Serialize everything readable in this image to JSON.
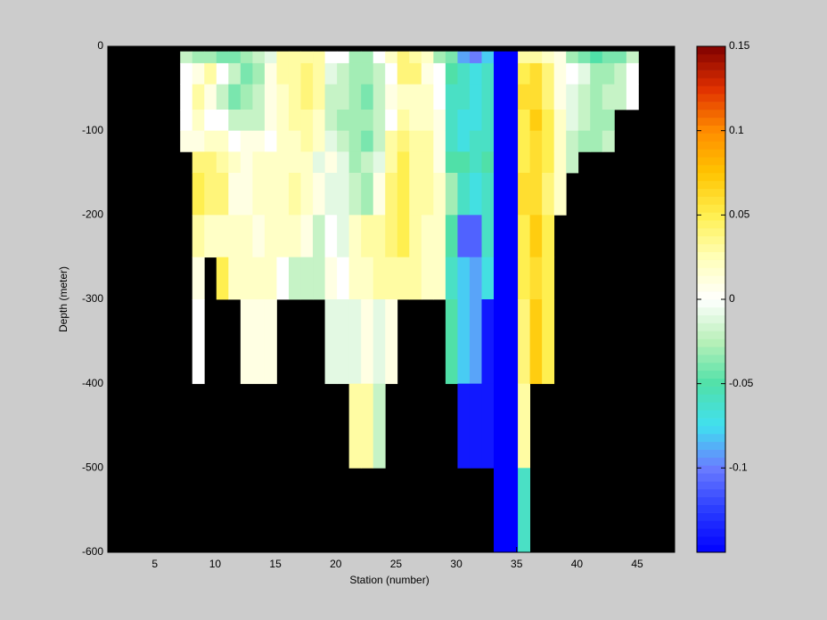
{
  "chart_data": {
    "type": "heatmap",
    "xlabel": "Station (number)",
    "ylabel": "Depth (meter)",
    "xlim": [
      1.1,
      48.1
    ],
    "ylim": [
      -600,
      0
    ],
    "xticks": [
      5,
      10,
      15,
      20,
      25,
      30,
      35,
      40,
      45
    ],
    "yticks": [
      0,
      -100,
      -200,
      -300,
      -400,
      -500,
      -600
    ],
    "background": "#000000",
    "x": [
      7.6,
      8.6,
      9.6,
      10.6,
      11.6,
      12.6,
      13.6,
      14.6,
      15.6,
      16.6,
      17.6,
      18.6,
      19.6,
      20.6,
      21.6,
      22.6,
      23.6,
      24.6,
      25.6,
      26.6,
      27.6,
      28.6,
      29.6,
      30.6,
      31.6,
      32.6,
      33.6,
      34.6,
      35.6,
      36.6,
      37.6,
      38.6,
      39.6,
      40.6,
      41.6,
      42.6,
      43.6,
      44.6
    ],
    "ybins": [
      -6,
      -20,
      -45,
      -75,
      -100,
      -125,
      -150,
      -200,
      -250,
      -300,
      -400,
      -500,
      -600
    ],
    "z": [
      [
        -0.02,
        0.0,
        0.0,
        0.0,
        0.01,
        null,
        null,
        null,
        null,
        null,
        null,
        null
      ],
      [
        -0.03,
        0.01,
        0.03,
        0.02,
        0.01,
        0.04,
        0.05,
        0.03,
        0.01,
        0.0,
        null,
        null
      ],
      [
        -0.03,
        0.03,
        0.01,
        0.0,
        0.02,
        0.04,
        0.04,
        0.02,
        null,
        null,
        null,
        null
      ],
      [
        -0.04,
        0.0,
        -0.02,
        0.0,
        0.02,
        0.03,
        0.04,
        0.02,
        0.05,
        null,
        null,
        null
      ],
      [
        -0.04,
        -0.02,
        -0.04,
        -0.02,
        0.0,
        0.02,
        0.01,
        0.02,
        0.02,
        null,
        null,
        null
      ],
      [
        -0.03,
        -0.04,
        -0.03,
        -0.02,
        0.01,
        0.01,
        0.01,
        0.02,
        0.02,
        0.01,
        null,
        null
      ],
      [
        -0.02,
        -0.03,
        -0.02,
        -0.02,
        0.01,
        0.02,
        0.02,
        0.01,
        0.02,
        0.01,
        null,
        null
      ],
      [
        -0.01,
        0.01,
        0.01,
        0.01,
        0.0,
        0.02,
        0.02,
        0.02,
        0.02,
        0.01,
        null,
        null
      ],
      [
        0.03,
        0.03,
        0.02,
        0.02,
        0.02,
        0.02,
        0.02,
        0.02,
        0.0,
        null,
        null,
        null
      ],
      [
        0.03,
        0.03,
        0.03,
        0.03,
        0.02,
        0.02,
        0.03,
        0.02,
        -0.02,
        null,
        null,
        null
      ],
      [
        0.03,
        0.04,
        0.04,
        0.03,
        0.03,
        0.02,
        0.02,
        0.01,
        -0.02,
        null,
        null,
        null
      ],
      [
        0.03,
        0.03,
        0.03,
        0.02,
        0.02,
        -0.01,
        0.01,
        -0.02,
        -0.02,
        null,
        null,
        null
      ],
      [
        0.0,
        -0.01,
        -0.02,
        -0.02,
        -0.01,
        0.01,
        -0.01,
        0.0,
        0.01,
        -0.01,
        null,
        null
      ],
      [
        0.0,
        -0.02,
        -0.02,
        -0.03,
        -0.02,
        -0.01,
        -0.01,
        -0.01,
        0.0,
        -0.01,
        null,
        null
      ],
      [
        -0.03,
        -0.03,
        -0.03,
        -0.03,
        -0.03,
        -0.03,
        -0.02,
        0.02,
        0.02,
        -0.01,
        0.03,
        null
      ],
      [
        -0.03,
        -0.03,
        -0.04,
        -0.03,
        -0.04,
        -0.02,
        -0.03,
        0.03,
        0.02,
        0.01,
        0.03,
        null
      ],
      [
        0.0,
        -0.02,
        -0.02,
        -0.02,
        -0.02,
        -0.01,
        0.01,
        0.03,
        0.03,
        -0.01,
        -0.02,
        null
      ],
      [
        0.02,
        0.0,
        0.01,
        0.0,
        0.03,
        0.03,
        0.04,
        0.04,
        0.03,
        0.01,
        null,
        null
      ],
      [
        0.04,
        0.04,
        0.02,
        0.03,
        0.04,
        0.05,
        0.05,
        0.05,
        0.03,
        null,
        null,
        null
      ],
      [
        0.03,
        0.04,
        0.02,
        0.02,
        0.03,
        0.03,
        0.03,
        0.03,
        0.03,
        null,
        null,
        null
      ],
      [
        0.02,
        0.01,
        0.02,
        0.02,
        0.03,
        0.03,
        0.03,
        0.02,
        0.02,
        null,
        null,
        null
      ],
      [
        -0.03,
        0.0,
        0.0,
        0.01,
        0.01,
        0.01,
        0.02,
        0.02,
        0.02,
        null,
        null,
        null
      ],
      [
        -0.04,
        -0.05,
        -0.06,
        -0.06,
        -0.06,
        -0.05,
        -0.03,
        -0.05,
        -0.06,
        -0.05,
        null,
        null
      ],
      [
        -0.09,
        -0.06,
        -0.06,
        -0.07,
        -0.07,
        -0.05,
        -0.06,
        -0.11,
        -0.08,
        -0.08,
        -0.14,
        null
      ],
      [
        -0.1,
        -0.07,
        -0.07,
        -0.07,
        -0.06,
        -0.06,
        -0.07,
        -0.11,
        -0.09,
        -0.09,
        -0.14,
        null
      ],
      [
        -0.08,
        -0.06,
        -0.06,
        -0.06,
        -0.06,
        -0.05,
        -0.06,
        -0.06,
        -0.07,
        -0.14,
        -0.14,
        null
      ],
      [
        -0.15,
        -0.15,
        -0.15,
        -0.15,
        -0.15,
        -0.15,
        -0.15,
        -0.15,
        -0.15,
        -0.15,
        -0.15,
        -0.15
      ],
      [
        -0.15,
        -0.15,
        -0.15,
        -0.15,
        -0.15,
        -0.15,
        -0.15,
        -0.15,
        -0.15,
        -0.15,
        -0.15,
        -0.15
      ],
      [
        0.03,
        0.05,
        0.06,
        0.05,
        0.05,
        0.05,
        0.06,
        0.05,
        0.05,
        0.04,
        0.03,
        -0.06
      ],
      [
        0.03,
        0.06,
        0.06,
        0.07,
        0.06,
        0.06,
        0.06,
        0.07,
        0.06,
        0.07,
        null,
        null
      ],
      [
        0.02,
        0.04,
        0.04,
        0.05,
        0.05,
        0.05,
        0.04,
        0.05,
        0.05,
        0.05,
        null,
        null
      ],
      [
        0.01,
        0.01,
        0.01,
        0.02,
        0.02,
        0.02,
        0.02,
        null,
        null,
        null,
        null,
        null
      ],
      [
        -0.03,
        0.0,
        -0.01,
        -0.01,
        -0.02,
        -0.02,
        null,
        null,
        null,
        null,
        null,
        null
      ],
      [
        -0.04,
        -0.01,
        -0.02,
        -0.02,
        -0.03,
        null,
        null,
        null,
        null,
        null,
        null,
        null
      ],
      [
        -0.05,
        -0.03,
        -0.03,
        -0.03,
        -0.03,
        null,
        null,
        null,
        null,
        null,
        null,
        null
      ],
      [
        -0.04,
        -0.03,
        -0.02,
        -0.03,
        -0.02,
        null,
        null,
        null,
        null,
        null,
        null,
        null
      ],
      [
        -0.04,
        -0.02,
        -0.02,
        null,
        null,
        null,
        null,
        null,
        null,
        null,
        null,
        null
      ],
      [
        -0.02,
        0.0,
        0.0,
        null,
        null,
        null,
        null,
        null,
        null,
        null,
        null,
        null
      ]
    ],
    "colormap": [
      "#0000ff",
      "#2a3cff",
      "#6a7cff",
      "#40e0f0",
      "#50e0a8",
      "#b8f0b8",
      "#ffffff",
      "#ffffb8",
      "#ffef50",
      "#ffc400",
      "#ff8c00",
      "#e03000",
      "#800000"
    ],
    "colorbar": {
      "lim": [
        -0.15,
        0.15
      ],
      "ticks": [
        -0.1,
        -0.05,
        0,
        0.05,
        0.1,
        0.15
      ]
    }
  }
}
